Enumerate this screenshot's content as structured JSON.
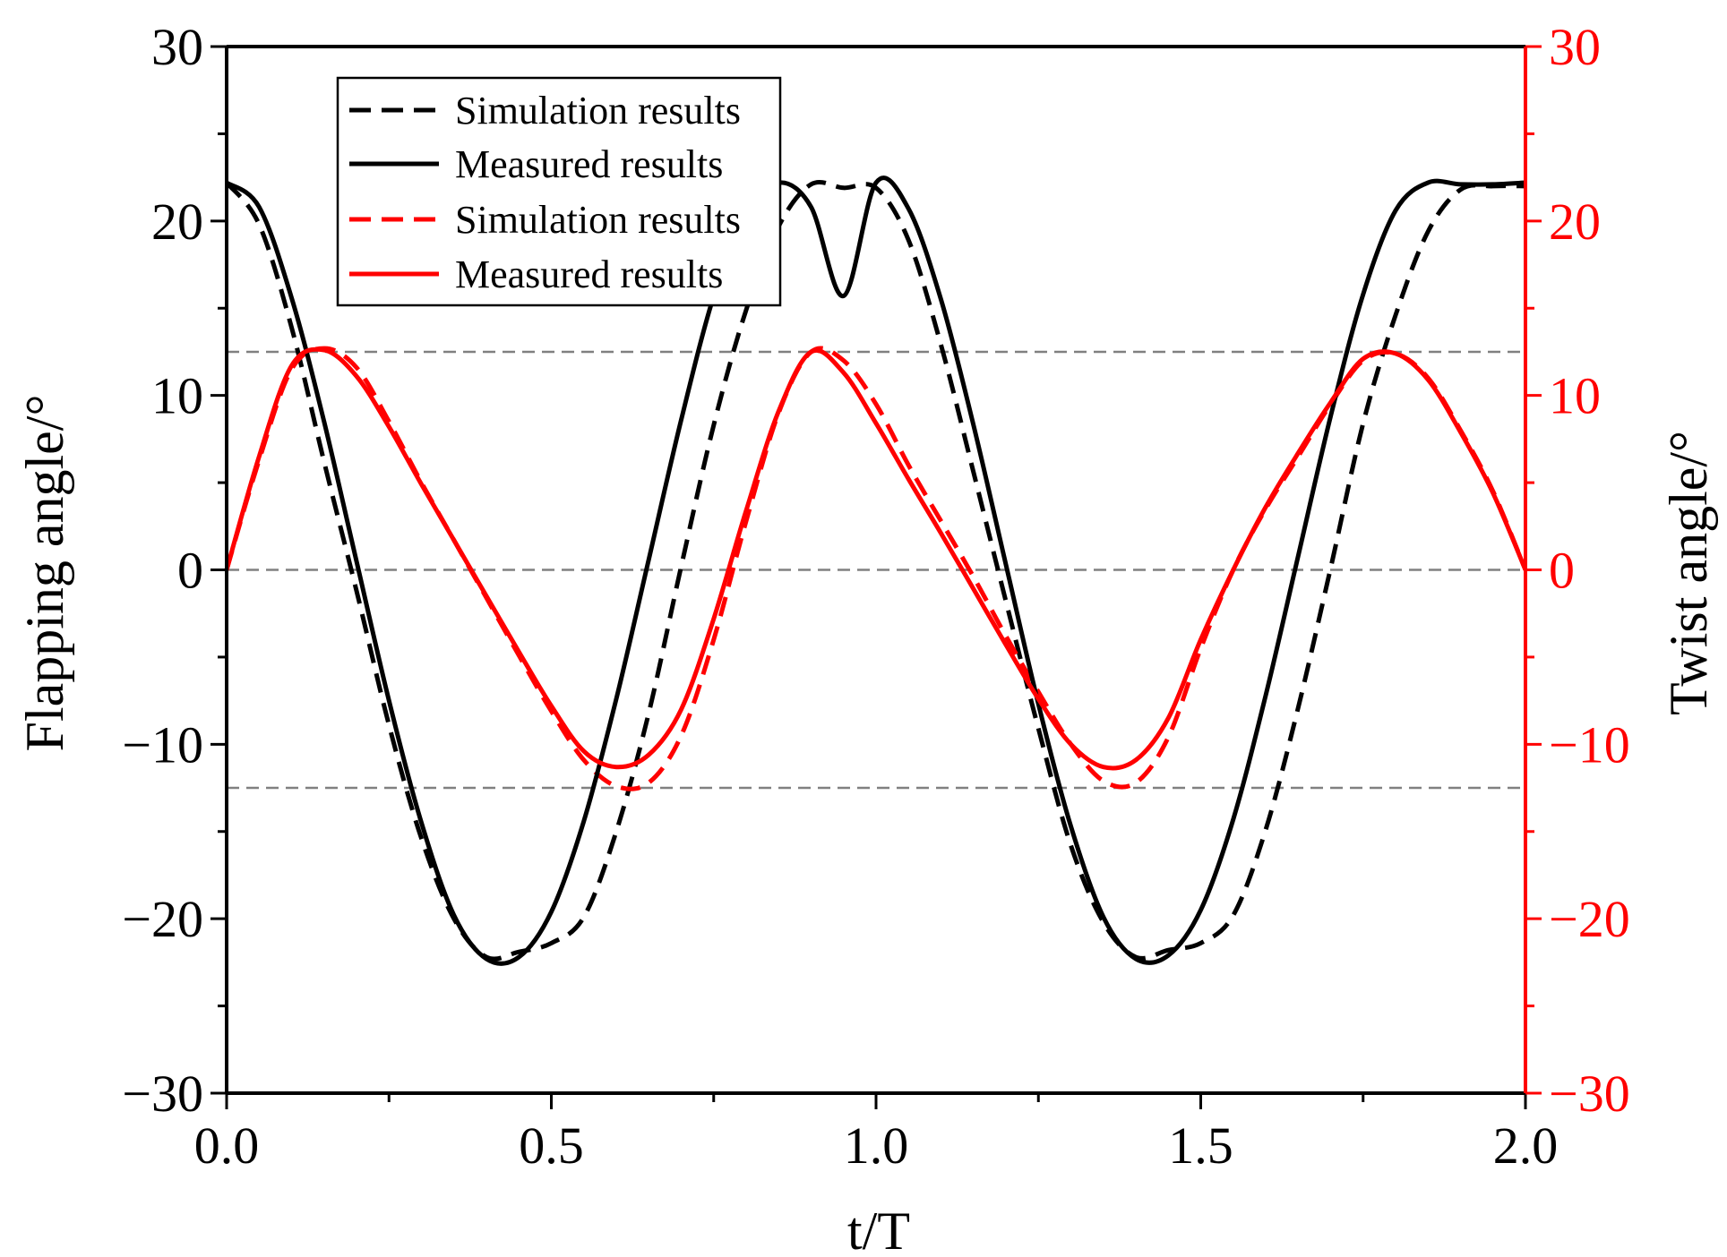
{
  "chart_data": {
    "type": "line",
    "x": [
      0.0,
      0.05,
      0.1,
      0.15,
      0.2,
      0.25,
      0.3,
      0.35,
      0.4,
      0.45,
      0.5,
      0.55,
      0.6,
      0.65,
      0.7,
      0.75,
      0.8,
      0.85,
      0.9,
      0.95,
      1.0,
      1.05,
      1.1,
      1.15,
      1.2,
      1.25,
      1.3,
      1.35,
      1.4,
      1.45,
      1.5,
      1.55,
      1.6,
      1.65,
      1.7,
      1.75,
      1.8,
      1.85,
      1.9,
      1.95,
      2.0
    ],
    "series": [
      {
        "name": "Simulation results",
        "axis": "left",
        "color": "#000000",
        "style": "dashed",
        "values": [
          22.2,
          19.8,
          13.9,
          6.2,
          -1.2,
          -8.9,
          -15.4,
          -20.0,
          -22.2,
          -21.9,
          -21.4,
          -19.9,
          -15.0,
          -8.2,
          0.2,
          8.3,
          14.9,
          19.7,
          22.1,
          21.9,
          21.9,
          18.9,
          12.9,
          5.6,
          -1.8,
          -9.1,
          -15.8,
          -20.2,
          -22.2,
          -21.8,
          -21.4,
          -19.8,
          -14.9,
          -7.9,
          0.1,
          8.4,
          14.6,
          19.4,
          21.8,
          22.0,
          22.0
        ]
      },
      {
        "name": "Measured results",
        "axis": "left",
        "color": "#000000",
        "style": "solid",
        "values": [
          22.2,
          20.8,
          15.6,
          8.5,
          0.5,
          -7.5,
          -14.5,
          -19.8,
          -22.3,
          -22.2,
          -19.6,
          -14.4,
          -7.4,
          0.6,
          8.6,
          15.7,
          20.5,
          22.2,
          20.8,
          15.7,
          22.2,
          20.7,
          15.5,
          8.3,
          0.3,
          -7.7,
          -14.7,
          -19.9,
          -22.3,
          -22.1,
          -19.5,
          -14.3,
          -7.2,
          0.8,
          8.8,
          15.8,
          20.6,
          22.2,
          22.1,
          22.1,
          22.2
        ]
      },
      {
        "name": "Simulation results",
        "axis": "right",
        "color": "#ff0000",
        "style": "dashed",
        "values": [
          0.0,
          6.3,
          11.5,
          12.7,
          11.6,
          8.5,
          5.0,
          1.7,
          -1.6,
          -4.9,
          -8.1,
          -10.9,
          -12.4,
          -12.2,
          -9.5,
          -4.0,
          2.8,
          9.0,
          12.5,
          12.0,
          9.5,
          6.0,
          2.8,
          -0.4,
          -3.8,
          -7.0,
          -10.0,
          -12.1,
          -12.2,
          -9.6,
          -4.5,
          0.0,
          3.5,
          6.5,
          9.5,
          12.0,
          12.4,
          11.0,
          8.0,
          4.5,
          0.0
        ]
      },
      {
        "name": "Measured results",
        "axis": "right",
        "color": "#ff0000",
        "style": "solid",
        "values": [
          0.0,
          6.5,
          11.7,
          12.6,
          11.1,
          8.2,
          4.9,
          1.7,
          -1.5,
          -4.7,
          -7.8,
          -10.4,
          -11.3,
          -10.6,
          -8.0,
          -2.8,
          3.4,
          9.1,
          12.5,
          11.3,
          8.4,
          5.2,
          2.1,
          -1.1,
          -4.3,
          -7.4,
          -10.0,
          -11.3,
          -10.9,
          -8.5,
          -4.0,
          0.0,
          3.6,
          6.7,
          9.6,
          12.1,
          12.4,
          10.9,
          7.9,
          4.4,
          0.0
        ]
      }
    ],
    "xlabel": "t/T",
    "ylabel_left": "Flapping angle/°",
    "ylabel_right": "Twist angle/°",
    "xlim": [
      0.0,
      2.0
    ],
    "ylim_left": [
      -30,
      30
    ],
    "ylim_right": [
      -30,
      30
    ],
    "x_ticks": [
      0.0,
      0.5,
      1.0,
      1.5,
      2.0
    ],
    "x_tick_labels": [
      "0.0",
      "0.5",
      "1.0",
      "1.5",
      "2.0"
    ],
    "y_ticks": [
      -30,
      -20,
      -10,
      0,
      10,
      20,
      30
    ],
    "y_tick_labels_left": [
      "−30",
      "−20",
      "−10",
      "0",
      "10",
      "20",
      "30"
    ],
    "y_tick_labels_right": [
      "−30",
      "−20",
      "−10",
      "0",
      "10",
      "20",
      "30"
    ],
    "reference_lines": [
      12.5,
      0,
      -12.5
    ],
    "legend": [
      "Simulation results",
      "Measured results",
      "Simulation results",
      "Measured results"
    ],
    "legend_position": "top-left",
    "grid": false
  },
  "colors": {
    "left_axis": "#000000",
    "right_axis": "#ff0000",
    "reference_line": "#808080"
  }
}
